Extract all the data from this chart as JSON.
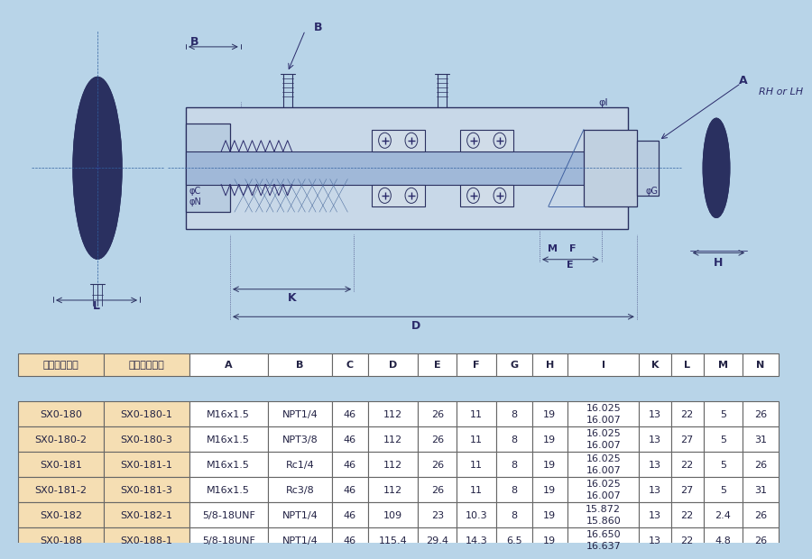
{
  "bg_color": "#b8d4e8",
  "table_bg_color": "#f5deb3",
  "table_header_bg": "#f5deb3",
  "table_border_color": "#666666",
  "drawing_bg": "#b8d4e8",
  "title": "",
  "table_headers": [
    "标准密封垫片",
    "高级密封垫片",
    "A",
    "B",
    "C",
    "D",
    "E",
    "F",
    "G",
    "H",
    "I",
    "K",
    "L",
    "M",
    "N"
  ],
  "col_widths": [
    1.2,
    1.2,
    1.1,
    0.9,
    0.5,
    0.7,
    0.55,
    0.55,
    0.5,
    0.5,
    1.0,
    0.45,
    0.45,
    0.55,
    0.5
  ],
  "table_data": [
    [
      "SX0-180",
      "SX0-180-1",
      "M16x1.5",
      "NPT1/4",
      "46",
      "112",
      "26",
      "11",
      "8",
      "19",
      "16.025\n16.007",
      "13",
      "22",
      "5",
      "26"
    ],
    [
      "SX0-180-2",
      "SX0-180-3",
      "M16x1.5",
      "NPT3/8",
      "46",
      "112",
      "26",
      "11",
      "8",
      "19",
      "16.025\n16.007",
      "13",
      "27",
      "5",
      "31"
    ],
    [
      "SX0-181",
      "SX0-181-1",
      "M16x1.5",
      "Rc1/4",
      "46",
      "112",
      "26",
      "11",
      "8",
      "19",
      "16.025\n16.007",
      "13",
      "22",
      "5",
      "26"
    ],
    [
      "SX0-181-2",
      "SX0-181-3",
      "M16x1.5",
      "Rc3/8",
      "46",
      "112",
      "26",
      "11",
      "8",
      "19",
      "16.025\n16.007",
      "13",
      "27",
      "5",
      "31"
    ],
    [
      "SX0-182",
      "SX0-182-1",
      "5/8-18UNF",
      "NPT1/4",
      "46",
      "109",
      "23",
      "10.3",
      "8",
      "19",
      "15.872\n15.860",
      "13",
      "22",
      "2.4",
      "26"
    ],
    [
      "SX0-188",
      "SX0-188-1",
      "5/8-18UNF",
      "NPT1/4",
      "46",
      "115.4",
      "29.4",
      "14.3",
      "6.5",
      "19",
      "16.650\n16.637",
      "13",
      "22",
      "4.8",
      "26"
    ]
  ],
  "dim_labels": [
    "A",
    "B",
    "C",
    "D",
    "E",
    "F",
    "G",
    "H",
    "I",
    "K",
    "L",
    "M",
    "N"
  ],
  "rh_lh_text": "RH or LH"
}
